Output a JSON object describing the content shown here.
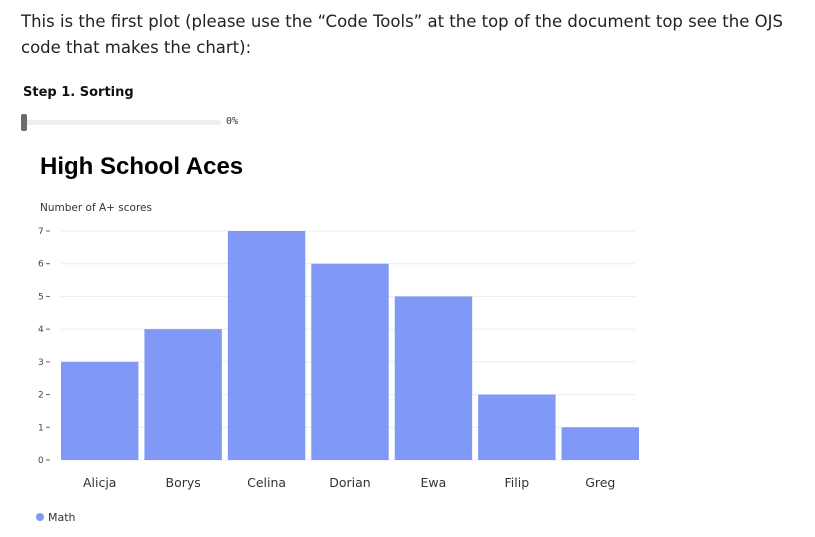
{
  "intro_text": "This is the first plot (please use the “Code Tools” at the top of the document top see the OJS code that makes the chart):",
  "step": {
    "label": "Step 1. Sorting",
    "value_text": "0%",
    "progress": 0
  },
  "colors": {
    "bar": "#8099f7",
    "grid": "#ececec"
  },
  "chart_data": {
    "type": "bar",
    "title": "High School Aces",
    "ylabel": "Number of A+ scores",
    "xlabel": "",
    "categories": [
      "Alicja",
      "Borys",
      "Celina",
      "Dorian",
      "Ewa",
      "Filip",
      "Greg"
    ],
    "series": [
      {
        "name": "Math",
        "values": [
          3,
          4,
          7,
          6,
          5,
          2,
          1
        ]
      }
    ],
    "ylim": [
      0,
      7
    ],
    "yticks": [
      "0",
      "1",
      "2",
      "3",
      "4",
      "5",
      "6",
      "7"
    ],
    "grid": true,
    "legend_position": "bottom-left"
  }
}
